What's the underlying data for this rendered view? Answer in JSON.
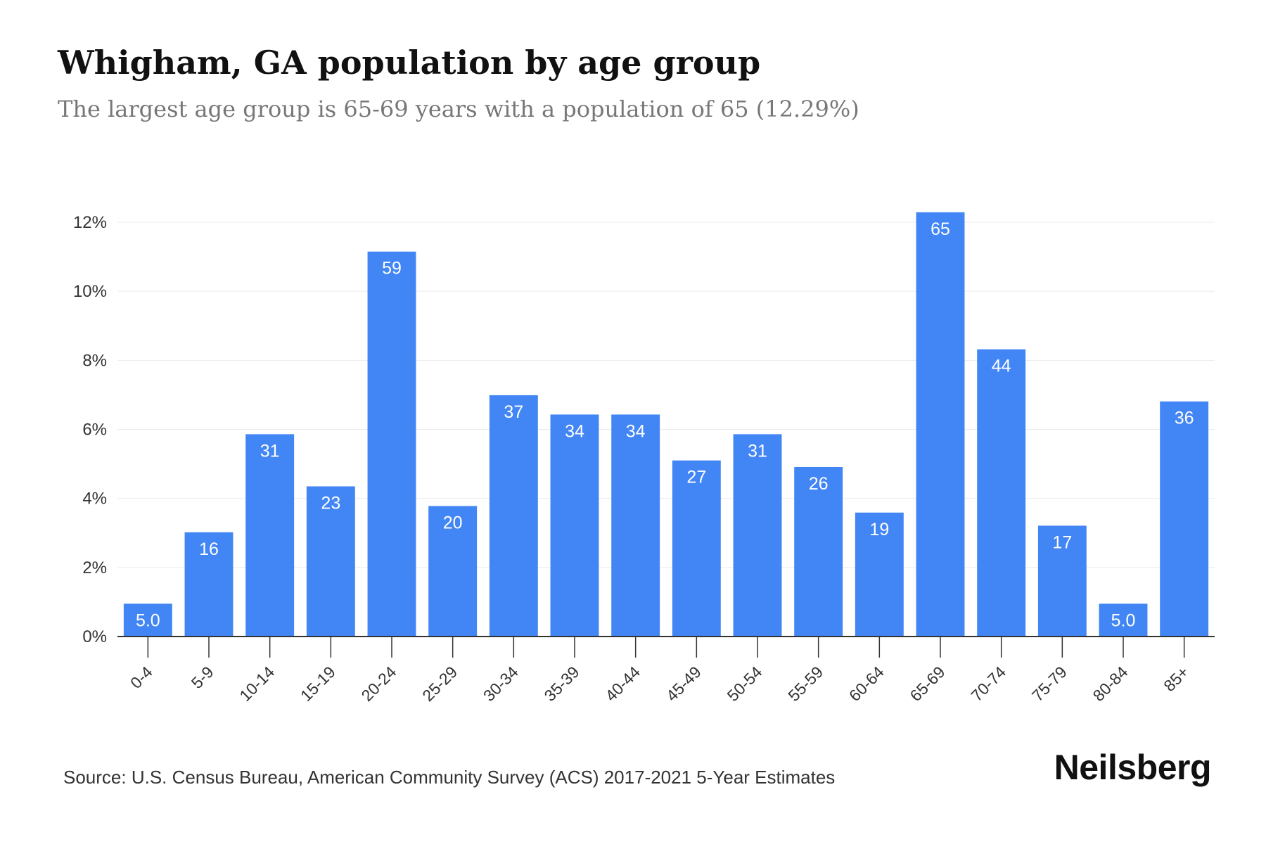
{
  "header": {
    "title": "Whigham, GA population by age group",
    "subtitle": "The largest age group is 65-69 years with a population of 65 (12.29%)"
  },
  "footer": {
    "source": "Source: U.S. Census Bureau, American Community Survey (ACS) 2017-2021 5-Year Estimates",
    "brand": "Neilsberg"
  },
  "colors": {
    "bar": "#4285f4",
    "grid": "#ebebeb",
    "axis": "#333333"
  },
  "chart_data": {
    "type": "bar",
    "categories": [
      "0-4",
      "5-9",
      "10-14",
      "15-19",
      "20-24",
      "25-29",
      "30-34",
      "35-39",
      "40-44",
      "45-49",
      "50-54",
      "55-59",
      "60-64",
      "65-69",
      "70-74",
      "75-79",
      "80-84",
      "85+"
    ],
    "values": [
      0.95,
      3.02,
      5.86,
      4.35,
      11.15,
      3.78,
      6.99,
      6.43,
      6.43,
      5.1,
      5.86,
      4.91,
      3.59,
      12.29,
      8.32,
      3.21,
      0.95,
      6.81
    ],
    "data_labels": [
      "5.0",
      "16",
      "31",
      "23",
      "59",
      "20",
      "37",
      "34",
      "34",
      "27",
      "31",
      "26",
      "19",
      "65",
      "44",
      "17",
      "5.0",
      "36"
    ],
    "y_ticks": [
      "0%",
      "2%",
      "4%",
      "6%",
      "8%",
      "10%",
      "12%"
    ],
    "ylim": [
      0,
      12
    ],
    "grid": true
  }
}
